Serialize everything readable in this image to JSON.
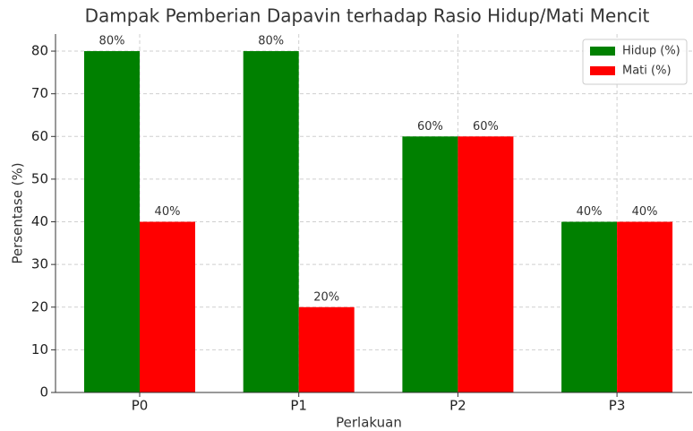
{
  "chart_data": {
    "type": "bar",
    "title": "Dampak Pemberian Dapavin terhadap Rasio Hidup/Mati Mencit",
    "xlabel": "Perlakuan",
    "ylabel": "Persentase (%)",
    "categories": [
      "P0",
      "P1",
      "P2",
      "P3"
    ],
    "series": [
      {
        "name": "Hidup (%)",
        "color": "#008000",
        "values": [
          80,
          80,
          60,
          40
        ],
        "value_labels": [
          "80%",
          "80%",
          "60%",
          "40%"
        ]
      },
      {
        "name": "Mati (%)",
        "color": "#ff0000",
        "values": [
          40,
          20,
          60,
          40
        ],
        "value_labels": [
          "40%",
          "20%",
          "60%",
          "40%"
        ]
      }
    ],
    "ylim": [
      0,
      84
    ],
    "yticks": [
      0,
      10,
      20,
      30,
      40,
      50,
      60,
      70,
      80
    ],
    "grid": true,
    "legend": "upper right"
  }
}
